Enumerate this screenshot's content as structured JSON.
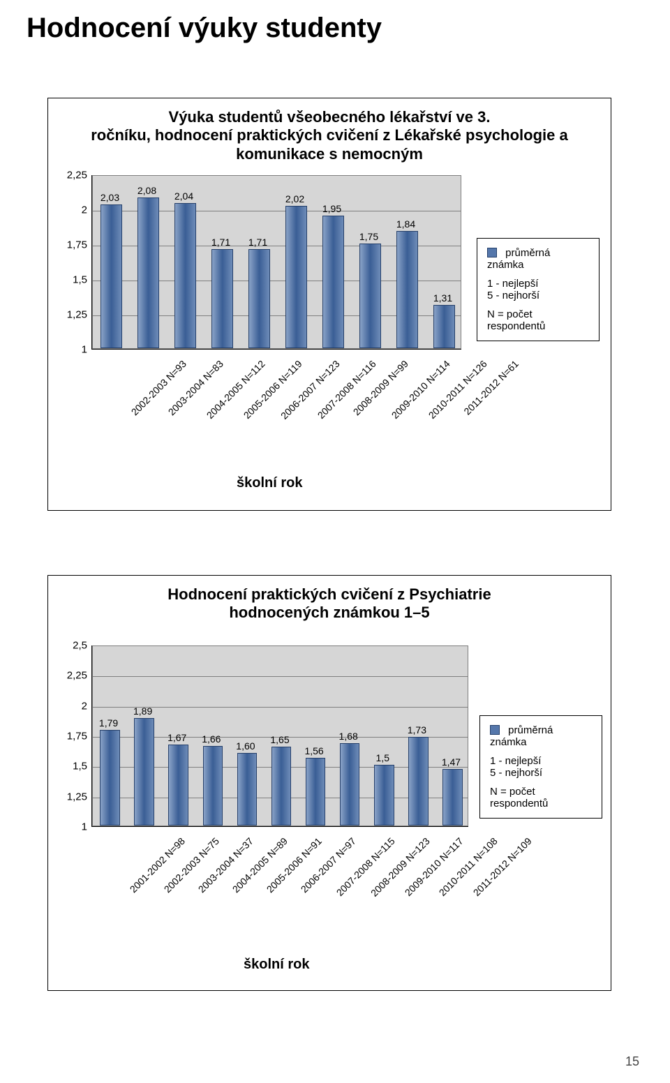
{
  "page_title": "Hodnocení výuky studenty",
  "page_number": "15",
  "chart1": {
    "title_line1": "Výuka studentů všeobecného lékařství ve 3.",
    "title_line2": "ročníku, hodnocení praktických cvičení z Lékařské psychologie a komunikace s nemocným",
    "y_min": 1,
    "y_max": 2.25,
    "y_ticks": [
      "1",
      "1,25",
      "1,5",
      "1,75",
      "2",
      "2,25"
    ],
    "bars": [
      {
        "label": "2002-2003 N=93",
        "value": 2.03,
        "disp": "2,03"
      },
      {
        "label": "2003-2004 N=83",
        "value": 2.08,
        "disp": "2,08"
      },
      {
        "label": "2004-2005 N=112",
        "value": 2.04,
        "disp": "2,04"
      },
      {
        "label": "2005-2006 N=119",
        "value": 1.71,
        "disp": "1,71"
      },
      {
        "label": "2006-2007 N=123",
        "value": 1.71,
        "disp": "1,71"
      },
      {
        "label": "2007-2008 N=116",
        "value": 2.02,
        "disp": "2,02"
      },
      {
        "label": "2008-2009 N=99",
        "value": 1.95,
        "disp": "1,95"
      },
      {
        "label": "2009-2010 N=114",
        "value": 1.75,
        "disp": "1,75"
      },
      {
        "label": "2010-2011 N=126",
        "value": 1.84,
        "disp": "1,84"
      },
      {
        "label": "2011-2012 N=61",
        "value": 1.31,
        "disp": "1,31"
      }
    ],
    "x_axis_title": "školní rok",
    "legend_label": "průměrná známka",
    "legend_note1": "1 - nejlepší",
    "legend_note2": "5 - nejhorší",
    "legend_note3": "N = počet respondentů",
    "bar_fill": "linear-gradient(to right,#8aa3c8,#3a5e95,#6e8cb8)",
    "plot_bg": "#d6d6d6"
  },
  "chart2": {
    "title_line1": "Hodnocení praktických cvičení z Psychiatrie",
    "title_line2": "hodnocených známkou 1–5",
    "y_min": 1,
    "y_max": 2.5,
    "y_ticks": [
      "1",
      "1,25",
      "1,5",
      "1,75",
      "2",
      "2,25",
      "2,5"
    ],
    "bars": [
      {
        "label": "2001-2002 N=98",
        "value": 1.79,
        "disp": "1,79"
      },
      {
        "label": "2002-2003 N=75",
        "value": 1.89,
        "disp": "1,89"
      },
      {
        "label": "2003-2004 N=37",
        "value": 1.67,
        "disp": "1,67"
      },
      {
        "label": "2004-2005 N=89",
        "value": 1.66,
        "disp": "1,66"
      },
      {
        "label": "2005-2006 N=91",
        "value": 1.6,
        "disp": "1,60"
      },
      {
        "label": "2006-2007 N=97",
        "value": 1.65,
        "disp": "1,65"
      },
      {
        "label": "2007-2008 N=115",
        "value": 1.56,
        "disp": "1,56"
      },
      {
        "label": "2008-2009 N=123",
        "value": 1.68,
        "disp": "1,68"
      },
      {
        "label": "2009-2010 N=117",
        "value": 1.5,
        "disp": "1,5"
      },
      {
        "label": "2010-2011 N=108",
        "value": 1.73,
        "disp": "1,73"
      },
      {
        "label": "2011-2012 N=109",
        "value": 1.47,
        "disp": "1,47"
      }
    ],
    "x_axis_title": "školní rok",
    "legend_label": "průměrná známka",
    "legend_note1": "1 - nejlepší",
    "legend_note2": "5 - nejhorší",
    "legend_note3": "N = počet respondentů",
    "plot_bg": "#d6d6d6"
  }
}
